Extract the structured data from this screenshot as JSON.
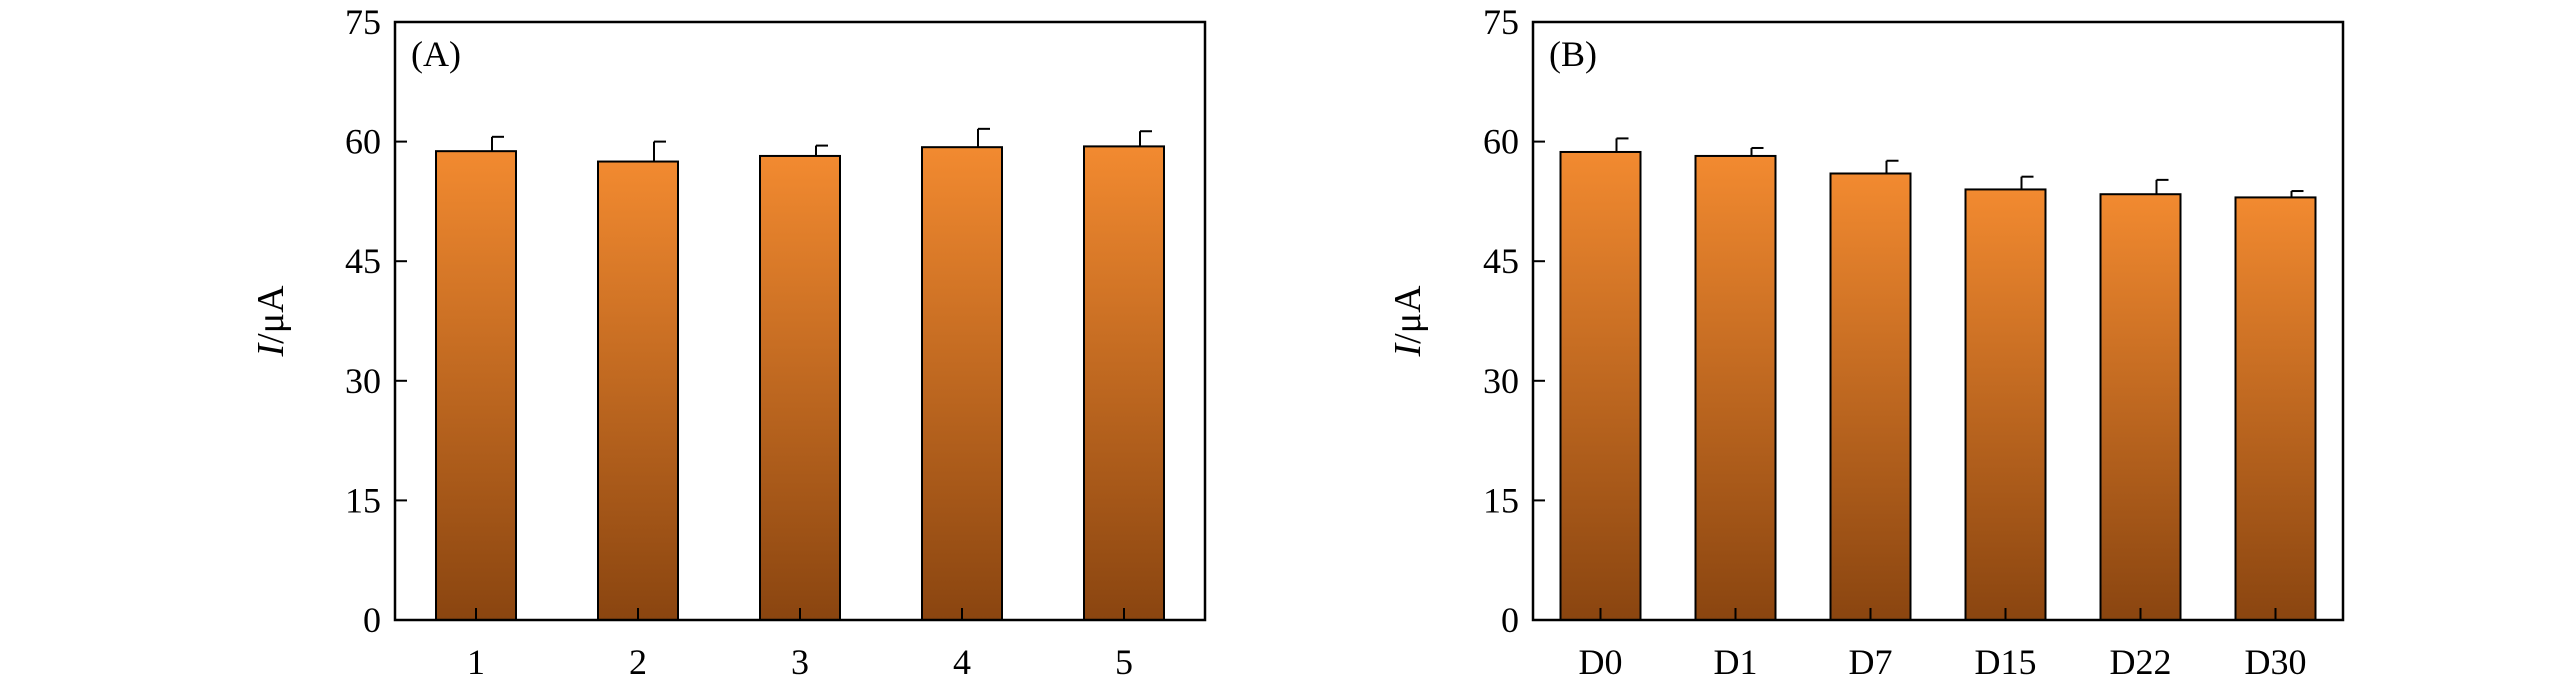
{
  "chart_data": [
    {
      "type": "bar",
      "panel_label": "(A)",
      "categories": [
        "1",
        "2",
        "3",
        "4",
        "5"
      ],
      "values": [
        58.8,
        57.5,
        58.2,
        59.3,
        59.4
      ],
      "errors": [
        1.8,
        2.5,
        1.3,
        2.3,
        1.9
      ],
      "xlabel": "",
      "ylabel": "I/μA",
      "ylabel_italic": "I",
      "ylabel_unit": "/μA",
      "ylim": [
        0,
        75
      ],
      "yticks": [
        "0",
        "15",
        "30",
        "45",
        "60",
        "75"
      ],
      "grid": false,
      "bar_gradient": [
        "#f28a30",
        "#8a4510"
      ]
    },
    {
      "type": "bar",
      "panel_label": "(B)",
      "categories": [
        "D0",
        "D1",
        "D7",
        "D15",
        "D22",
        "D30"
      ],
      "values": [
        58.7,
        58.2,
        56.0,
        54.0,
        53.4,
        53.0
      ],
      "errors": [
        1.7,
        1.0,
        1.6,
        1.6,
        1.8,
        0.8
      ],
      "xlabel": "",
      "ylabel": "I/μA",
      "ylabel_italic": "I",
      "ylabel_unit": "/μA",
      "ylim": [
        0,
        75
      ],
      "yticks": [
        "0",
        "15",
        "30",
        "45",
        "60",
        "75"
      ],
      "grid": false,
      "bar_gradient": [
        "#f28a30",
        "#8a4510"
      ]
    }
  ]
}
